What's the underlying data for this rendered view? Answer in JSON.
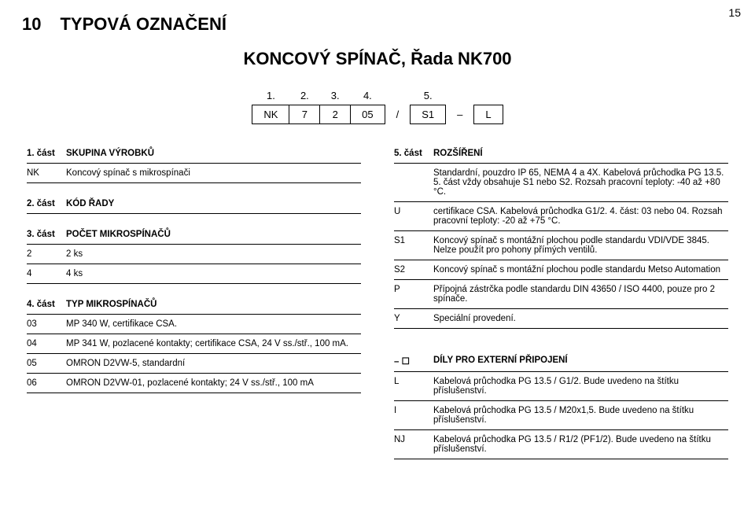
{
  "page_number": "15",
  "section_number": "10",
  "section_title": "TYPOVÁ OZNAČENÍ",
  "subtitle": "KONCOVÝ SPÍNAČ, Řada NK700",
  "code_header": [
    "1.",
    "2.",
    "3.",
    "4.",
    "",
    "5.",
    "",
    ""
  ],
  "code_values": [
    "NK",
    "7",
    "2",
    "05",
    "/",
    "S1",
    "–",
    "L"
  ],
  "part1": {
    "title_code": "1. část",
    "title": "SKUPINA VÝROBKŮ",
    "rows": [
      {
        "code": "NK",
        "text": "Koncový spínač s mikrospínači"
      }
    ]
  },
  "part2": {
    "title_code": "2. část",
    "title": "KÓD ŘADY"
  },
  "part3": {
    "title_code": "3. část",
    "title": "POČET MIKROSPÍNAČŮ",
    "rows": [
      {
        "code": "2",
        "text": "2 ks"
      },
      {
        "code": "4",
        "text": "4 ks"
      }
    ]
  },
  "part4": {
    "title_code": "4. část",
    "title": "TYP MIKROSPÍNAČŮ",
    "rows": [
      {
        "code": "03",
        "text": "MP 340 W, certifikace CSA."
      },
      {
        "code": "04",
        "text": "MP 341 W, pozlacené kontakty; certifikace CSA, 24 V ss./stř., 100 mA."
      },
      {
        "code": "05",
        "text": "OMRON D2VW-5, standardní"
      },
      {
        "code": "06",
        "text": "OMRON D2VW-01, pozlacené kontakty; 24 V ss./stř., 100 mA"
      }
    ]
  },
  "part5": {
    "title_code": "5. část",
    "title": "ROZŠÍŘENÍ",
    "rows": [
      {
        "code": "",
        "text": "Standardní, pouzdro IP 65, NEMA 4 a 4X. Kabelová průchodka PG 13.5. 5. část vždy obsahuje S1 nebo S2. Rozsah pracovní teploty: -40 až +80 °C."
      },
      {
        "code": "U",
        "text": "certifikace CSA. Kabelová průchodka G1/2. 4. část: 03 nebo 04. Rozsah pracovní teploty: -20 až +75 °C."
      },
      {
        "code": "S1",
        "text": "Koncový spínač s montážní plochou podle standardu VDI/VDE 3845. Nelze použít pro pohony přímých ventilů."
      },
      {
        "code": "S2",
        "text": "Koncový spínač s montážní plochou podle standardu Metso Automation"
      },
      {
        "code": "P",
        "text": "Přípojná zástrčka podle standardu DIN 43650 / ISO 4400, pouze pro 2 spínače."
      },
      {
        "code": "Y",
        "text": "Speciální provedení."
      }
    ]
  },
  "ext_parts": {
    "title_code": "– ☐",
    "title": "DÍLY PRO EXTERNÍ PŘIPOJENÍ",
    "rows": [
      {
        "code": "L",
        "text": "Kabelová průchodka PG 13.5 / G1/2. Bude uvedeno na štítku příslušenství."
      },
      {
        "code": "I",
        "text": "Kabelová průchodka PG 13.5 / M20x1,5. Bude uvedeno na štítku příslušenství."
      },
      {
        "code": "NJ",
        "text": "Kabelová průchodka PG 13.5 / R1/2 (PF1/2). Bude uvedeno na štítku příslušenství."
      }
    ]
  }
}
